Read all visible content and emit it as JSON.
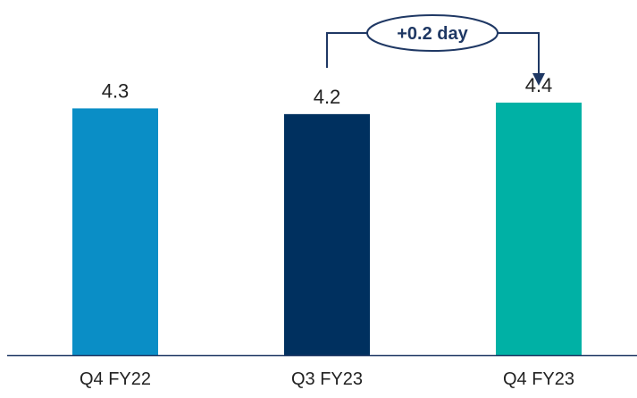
{
  "title": "",
  "chart_data": {
    "type": "bar",
    "categories": [
      "Q4 FY22",
      "Q3 FY23",
      "Q4 FY23"
    ],
    "values": [
      4.3,
      4.2,
      4.4
    ],
    "data_labels": [
      "4.3",
      "4.2",
      "4.4"
    ],
    "bar_colors": [
      "#0a8ec6",
      "#00305f",
      "#00b1a5"
    ],
    "ylim": [
      0,
      4.4
    ],
    "xlabel": "",
    "ylabel": "",
    "grid": false,
    "legend": "none",
    "annotation": {
      "text": "+0.2 day",
      "from": "Q3 FY23",
      "to": "Q4 FY23",
      "arrow": "elbow connector from top of Q3 FY23 to top of Q4 FY23"
    }
  },
  "colors": {
    "axis": "#1f3864",
    "text": "#222222",
    "connector": "#1f3864"
  }
}
